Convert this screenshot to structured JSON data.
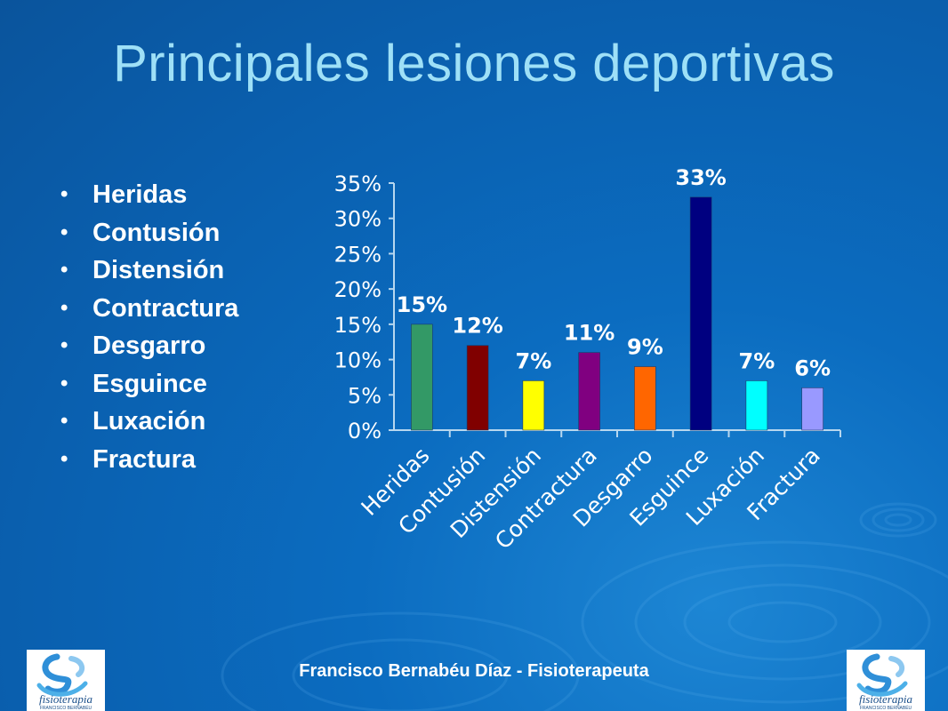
{
  "slide": {
    "title": "Principales lesiones deportivas",
    "bullets": [
      "Heridas",
      "Contusión",
      "Distensión",
      "Contractura",
      "Desgarro",
      "Esguince",
      "Luxación",
      "Fractura"
    ],
    "footer": "Francisco Bernabéu Díaz - Fisioterapeuta",
    "logo_text": "fisioterapia",
    "logo_subtext": "FRANCISCO BERNABÉU"
  },
  "chart_data": {
    "type": "bar",
    "categories": [
      "Heridas",
      "Contusión",
      "Distensión",
      "Contractura",
      "Desgarro",
      "Esguince",
      "Luxación",
      "Fractura"
    ],
    "values": [
      15,
      12,
      7,
      11,
      9,
      33,
      7,
      6
    ],
    "data_labels": [
      "15%",
      "12%",
      "7%",
      "11%",
      "9%",
      "33%",
      "7%",
      "6%"
    ],
    "colors": [
      "#339966",
      "#800000",
      "#ffff00",
      "#800080",
      "#ff6600",
      "#000080",
      "#00ffff",
      "#9999ff"
    ],
    "ylim": [
      0,
      35
    ],
    "yticks": [
      0,
      5,
      10,
      15,
      20,
      25,
      30,
      35
    ],
    "ytick_labels": [
      "0%",
      "5%",
      "10%",
      "15%",
      "20%",
      "25%",
      "30%",
      "35%"
    ],
    "grid": false,
    "legend": "none"
  }
}
